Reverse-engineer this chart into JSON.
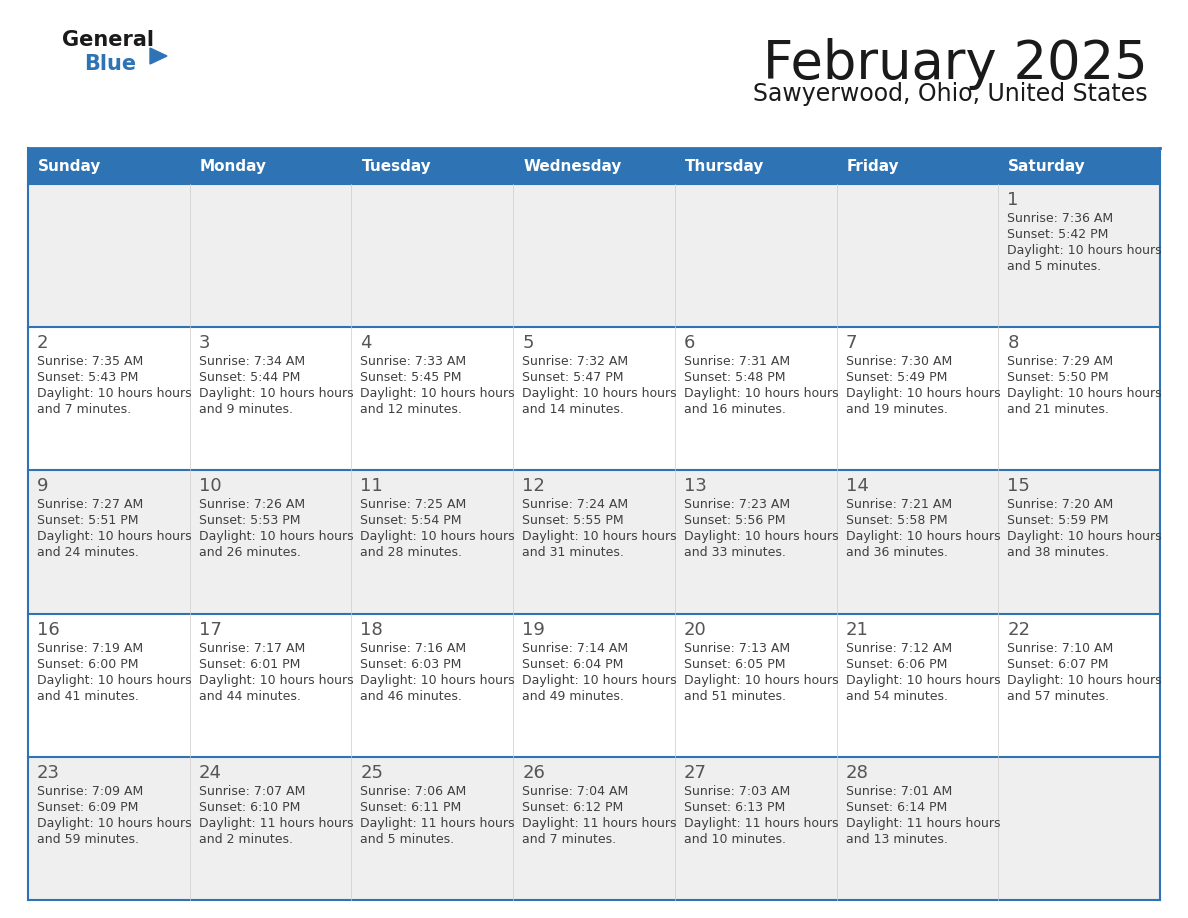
{
  "title": "February 2025",
  "subtitle": "Sawyerwood, Ohio, United States",
  "header_bg": "#2E74B5",
  "header_text_color": "#FFFFFF",
  "row_bg_odd": "#EFEFEF",
  "row_bg_even": "#FFFFFF",
  "border_color": "#2E74B5",
  "day_number_color": "#555555",
  "cell_text_color": "#404040",
  "title_color": "#1a1a1a",
  "days_of_week": [
    "Sunday",
    "Monday",
    "Tuesday",
    "Wednesday",
    "Thursday",
    "Friday",
    "Saturday"
  ],
  "calendar_data": [
    [
      null,
      null,
      null,
      null,
      null,
      null,
      {
        "day": "1",
        "sunrise": "7:36 AM",
        "sunset": "5:42 PM",
        "daylight": "10 hours and 5 minutes."
      }
    ],
    [
      {
        "day": "2",
        "sunrise": "7:35 AM",
        "sunset": "5:43 PM",
        "daylight": "10 hours and 7 minutes."
      },
      {
        "day": "3",
        "sunrise": "7:34 AM",
        "sunset": "5:44 PM",
        "daylight": "10 hours and 9 minutes."
      },
      {
        "day": "4",
        "sunrise": "7:33 AM",
        "sunset": "5:45 PM",
        "daylight": "10 hours and 12 minutes."
      },
      {
        "day": "5",
        "sunrise": "7:32 AM",
        "sunset": "5:47 PM",
        "daylight": "10 hours and 14 minutes."
      },
      {
        "day": "6",
        "sunrise": "7:31 AM",
        "sunset": "5:48 PM",
        "daylight": "10 hours and 16 minutes."
      },
      {
        "day": "7",
        "sunrise": "7:30 AM",
        "sunset": "5:49 PM",
        "daylight": "10 hours and 19 minutes."
      },
      {
        "day": "8",
        "sunrise": "7:29 AM",
        "sunset": "5:50 PM",
        "daylight": "10 hours and 21 minutes."
      }
    ],
    [
      {
        "day": "9",
        "sunrise": "7:27 AM",
        "sunset": "5:51 PM",
        "daylight": "10 hours and 24 minutes."
      },
      {
        "day": "10",
        "sunrise": "7:26 AM",
        "sunset": "5:53 PM",
        "daylight": "10 hours and 26 minutes."
      },
      {
        "day": "11",
        "sunrise": "7:25 AM",
        "sunset": "5:54 PM",
        "daylight": "10 hours and 28 minutes."
      },
      {
        "day": "12",
        "sunrise": "7:24 AM",
        "sunset": "5:55 PM",
        "daylight": "10 hours and 31 minutes."
      },
      {
        "day": "13",
        "sunrise": "7:23 AM",
        "sunset": "5:56 PM",
        "daylight": "10 hours and 33 minutes."
      },
      {
        "day": "14",
        "sunrise": "7:21 AM",
        "sunset": "5:58 PM",
        "daylight": "10 hours and 36 minutes."
      },
      {
        "day": "15",
        "sunrise": "7:20 AM",
        "sunset": "5:59 PM",
        "daylight": "10 hours and 38 minutes."
      }
    ],
    [
      {
        "day": "16",
        "sunrise": "7:19 AM",
        "sunset": "6:00 PM",
        "daylight": "10 hours and 41 minutes."
      },
      {
        "day": "17",
        "sunrise": "7:17 AM",
        "sunset": "6:01 PM",
        "daylight": "10 hours and 44 minutes."
      },
      {
        "day": "18",
        "sunrise": "7:16 AM",
        "sunset": "6:03 PM",
        "daylight": "10 hours and 46 minutes."
      },
      {
        "day": "19",
        "sunrise": "7:14 AM",
        "sunset": "6:04 PM",
        "daylight": "10 hours and 49 minutes."
      },
      {
        "day": "20",
        "sunrise": "7:13 AM",
        "sunset": "6:05 PM",
        "daylight": "10 hours and 51 minutes."
      },
      {
        "day": "21",
        "sunrise": "7:12 AM",
        "sunset": "6:06 PM",
        "daylight": "10 hours and 54 minutes."
      },
      {
        "day": "22",
        "sunrise": "7:10 AM",
        "sunset": "6:07 PM",
        "daylight": "10 hours and 57 minutes."
      }
    ],
    [
      {
        "day": "23",
        "sunrise": "7:09 AM",
        "sunset": "6:09 PM",
        "daylight": "10 hours and 59 minutes."
      },
      {
        "day": "24",
        "sunrise": "7:07 AM",
        "sunset": "6:10 PM",
        "daylight": "11 hours and 2 minutes."
      },
      {
        "day": "25",
        "sunrise": "7:06 AM",
        "sunset": "6:11 PM",
        "daylight": "11 hours and 5 minutes."
      },
      {
        "day": "26",
        "sunrise": "7:04 AM",
        "sunset": "6:12 PM",
        "daylight": "11 hours and 7 minutes."
      },
      {
        "day": "27",
        "sunrise": "7:03 AM",
        "sunset": "6:13 PM",
        "daylight": "11 hours and 10 minutes."
      },
      {
        "day": "28",
        "sunrise": "7:01 AM",
        "sunset": "6:14 PM",
        "daylight": "11 hours and 13 minutes."
      },
      null
    ]
  ],
  "logo_general_color": "#1a1a1a",
  "logo_blue_color": "#2E74B5",
  "logo_triangle_color": "#2E74B5"
}
